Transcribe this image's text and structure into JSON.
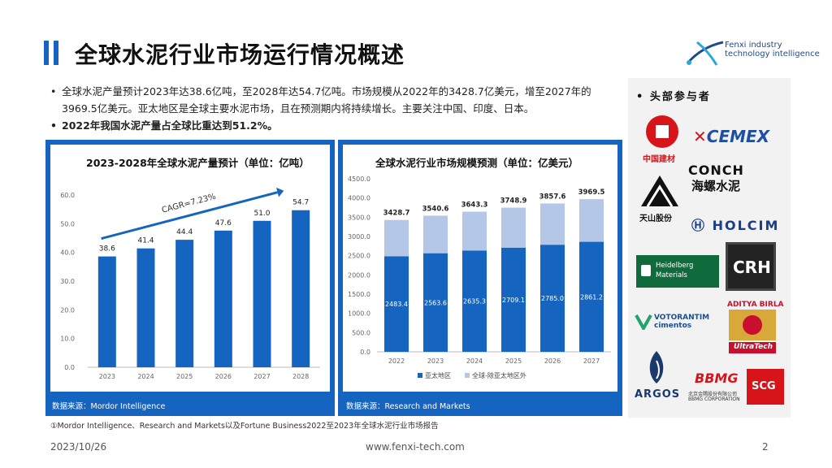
{
  "header": {
    "title": "全球水泥行业市场运行情况概述",
    "logo_line1": "Fenxi industry",
    "logo_line2": "technology intelligence"
  },
  "bullets": [
    "全球水泥产量预计2023年达38.6亿吨，至2028年达54.7亿吨。市场规模从2022年的3428.7亿美元，增至2027年的3969.5亿美元。亚太地区是全球主要水泥市场，且在预测期内将持续增长。主要关注中国、印度、日本。",
    "2022年我国水泥产量占全球比重达到51.2%。"
  ],
  "chart_data": [
    {
      "type": "bar",
      "title": "2023-2028年全球水泥产量预计（单位：亿吨）",
      "categories": [
        "2023",
        "2024",
        "2025",
        "2026",
        "2027",
        "2028"
      ],
      "values": [
        38.6,
        41.4,
        44.4,
        47.6,
        51.0,
        54.7
      ],
      "value_labels": [
        "38.6",
        "41.4",
        "44.4",
        "47.6",
        "51.0",
        "54.7"
      ],
      "ylim": [
        0,
        60
      ],
      "yticks": [
        "0.0",
        "10.0",
        "20.0",
        "30.0",
        "40.0",
        "50.0",
        "60.0"
      ],
      "annotation": "CAGR=7.23%",
      "source": "数据来源：Mordor Intelligence",
      "color": "#1565c0"
    },
    {
      "type": "bar",
      "stacked": true,
      "title": "全球水泥行业市场规模预测（单位：亿美元）",
      "categories": [
        "2022",
        "2023",
        "2024",
        "2025",
        "2026",
        "2027"
      ],
      "series": [
        {
          "name": "亚太地区",
          "values": [
            2483.4,
            2563.6,
            2635.3,
            2709.1,
            2785.0,
            2861.2
          ],
          "labels": [
            "2483.4",
            "2563.6",
            "2635.3",
            "2709.1",
            "2785.0",
            "2861.2"
          ],
          "color": "#1565c0"
        },
        {
          "name": "全球-除亚太地区外",
          "values": [
            945.3,
            977.0,
            1008.0,
            1039.8,
            1072.6,
            1108.3
          ],
          "color": "#b4c7e7"
        }
      ],
      "totals": [
        "3428.7",
        "3540.6",
        "3643.3",
        "3748.9",
        "3857.6",
        "3969.5"
      ],
      "ylim": [
        0,
        4500
      ],
      "yticks": [
        "0.0",
        "500.0",
        "1000.0",
        "1500.0",
        "2000.0",
        "2500.0",
        "3000.0",
        "3500.0",
        "4000.0",
        "4500.0"
      ],
      "legend": "bottom",
      "source": "数据来源：Research and Markets"
    }
  ],
  "footnote": "①Mordor Intelligence、Research and Markets以及Fortune Business2022至2023年全球水泥行业市场报告",
  "footer": {
    "date": "2023/10/26",
    "url": "www.fenxi-tech.com",
    "page": "2"
  },
  "participants": {
    "heading": "• 头部参与者",
    "brands": {
      "cnbm": "中国建材",
      "cemex": "CEMEX",
      "conch_en": "CONCH",
      "conch_cn": "海螺水泥",
      "tianshan": "天山股份",
      "holcim": "HOLCIM",
      "heidelberg_1": "Heidelberg",
      "heidelberg_2": "Materials",
      "crh": "CRH",
      "votorantim_1": "VOTORANTIM",
      "votorantim_2": "cimentos",
      "aditya": "ADITYA BIRLA",
      "ultratech": "UltraTech",
      "argos": "ARGOS",
      "bbmg": "BBMG",
      "bbmg_cn": "北京金隅股份有限公司",
      "bbmg_en": "BBMG CORPORATION",
      "scg": "SCG"
    },
    "colors": {
      "cnbm": "#d7141a",
      "cemex": "#1f4fa3",
      "holcim": "#1a3e8a",
      "heidelberg": "#0f6b3c",
      "crh": "#222222",
      "votorantim": "#1d4f91",
      "aditya": "#c8102e",
      "argos": "#1a3a6e",
      "bbmg": "#d7141a",
      "scg": "#d7141a"
    }
  }
}
